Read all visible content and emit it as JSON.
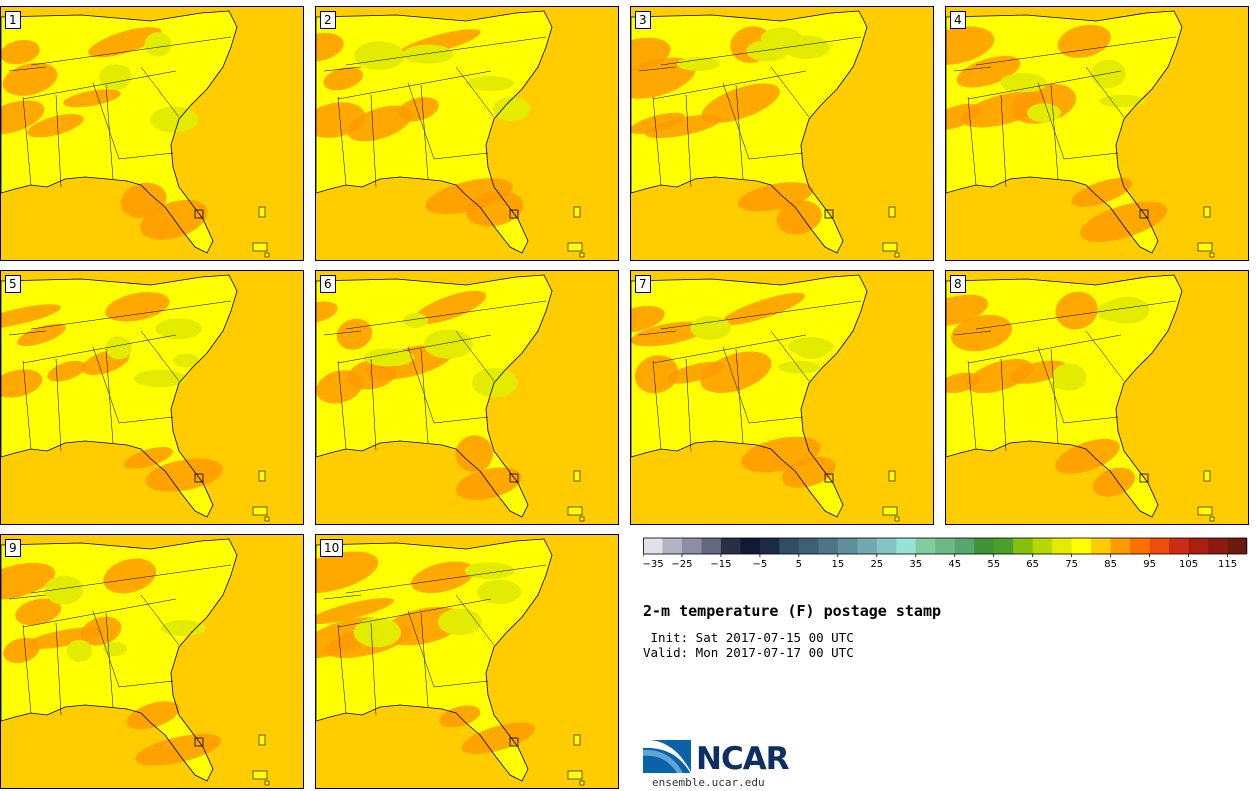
{
  "panels": [
    {
      "label": "1"
    },
    {
      "label": "2"
    },
    {
      "label": "3"
    },
    {
      "label": "4"
    },
    {
      "label": "5"
    },
    {
      "label": "6"
    },
    {
      "label": "7"
    },
    {
      "label": "8"
    },
    {
      "label": "9"
    },
    {
      "label": "10"
    }
  ],
  "colorbar": {
    "colors": [
      "#e1e1ea",
      "#b3b3c6",
      "#8d8da6",
      "#646780",
      "#2b2f45",
      "#101a35",
      "#1a2b46",
      "#314c64",
      "#3d6073",
      "#4d7587",
      "#5f8f9b",
      "#72a8ae",
      "#86c3c5",
      "#97e2d6",
      "#7fcc9f",
      "#6ab987",
      "#55a76e",
      "#3f9436",
      "#4aa028",
      "#86c00f",
      "#b4d800",
      "#e3ec00",
      "#ffff00",
      "#ffcc00",
      "#ff9a00",
      "#fc7000",
      "#ed4e0e",
      "#cb2c12",
      "#a9200f",
      "#8c1a0e",
      "#6d1a0d"
    ],
    "ticks": [
      "−35",
      "−25",
      "−15",
      "−5",
      "5",
      "15",
      "25",
      "35",
      "45",
      "55",
      "65",
      "75",
      "85",
      "95",
      "105",
      "115"
    ]
  },
  "title": "2-m temperature (F) postage stamp",
  "init_line": " Init: Sat 2017-07-15 00 UTC",
  "valid_line": "Valid: Mon 2017-07-17 00 UTC",
  "logo": {
    "name": "NCAR",
    "url": "ensemble.ucar.edu"
  },
  "map_colors": {
    "ocean": "#ffcc00",
    "hot": "#ff9a00",
    "mild": "#ffff00",
    "cool": "#e3ec00",
    "border": "#000000"
  }
}
